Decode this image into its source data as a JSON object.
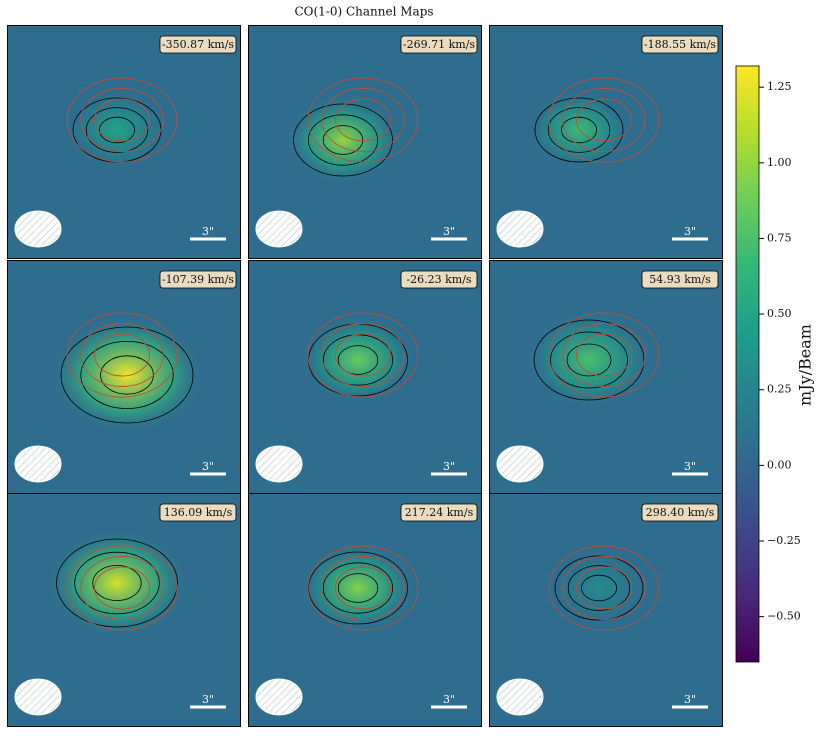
{
  "chart_data": {
    "type": "heatmap",
    "title": "CO(1-0) Channel Maps",
    "panels": [
      {
        "label": "-350.87 km/s",
        "peak": 0.5
      },
      {
        "label": "-269.71 km/s",
        "peak": 1.0
      },
      {
        "label": "-188.55 km/s",
        "peak": 0.7
      },
      {
        "label": "-107.39 km/s",
        "peak": 1.3
      },
      {
        "label": "-26.23 km/s",
        "peak": 0.85
      },
      {
        "label": "54.93 km/s",
        "peak": 0.75
      },
      {
        "label": "136.09 km/s",
        "peak": 1.2
      },
      {
        "label": "217.24 km/s",
        "peak": 0.95
      },
      {
        "label": "298.40 km/s",
        "peak": 0.3
      }
    ],
    "scale_bar_label": "3\"",
    "colorbar": {
      "label": "mJy/Beam",
      "ylim": [
        -0.65,
        1.32
      ],
      "yticks": [
        1.25,
        {
          "value": 1,
          "label": "1.00"
        },
        0.75,
        {
          "value": 0.5,
          "label": "0.50"
        },
        0.25,
        {
          "value": 0,
          "label": "0.00"
        },
        {
          "value": -0.25,
          "label": "−0.25"
        },
        {
          "value": -0.5,
          "label": "−0.50"
        }
      ]
    }
  }
}
